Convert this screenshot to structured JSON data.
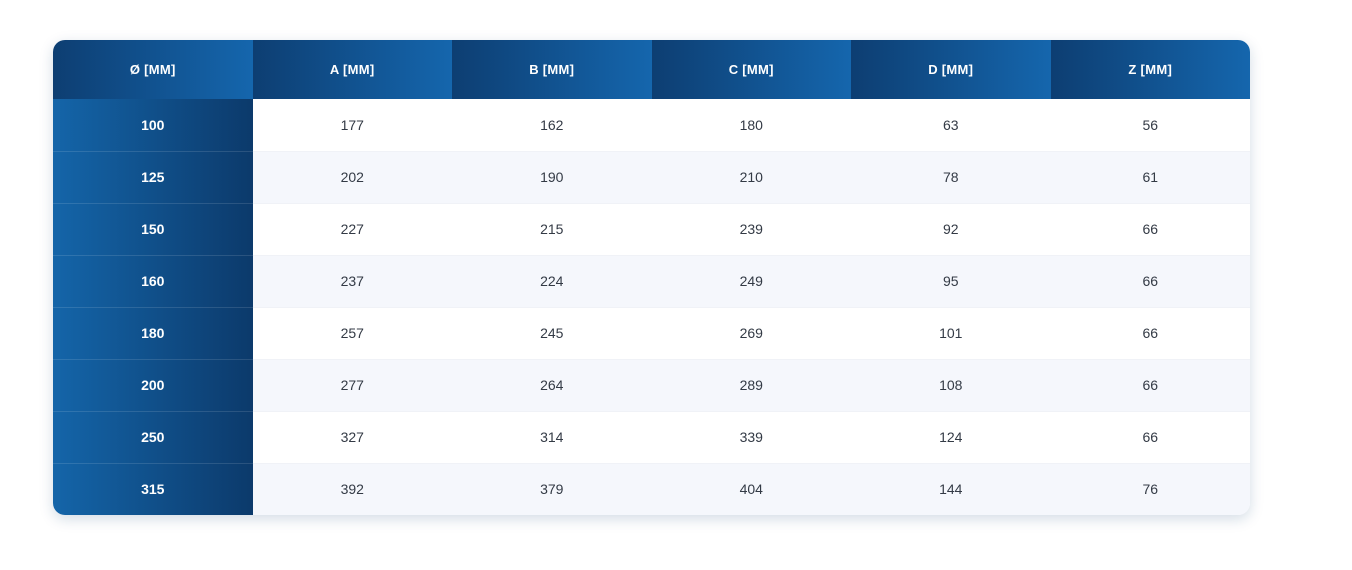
{
  "chart_data": {
    "type": "table",
    "title": "",
    "columns": [
      "Ø [MM]",
      "A [MM]",
      "B [MM]",
      "C [MM]",
      "D [MM]",
      "Z [MM]"
    ],
    "rows": [
      [
        "100",
        "177",
        "162",
        "180",
        "63",
        "56"
      ],
      [
        "125",
        "202",
        "190",
        "210",
        "78",
        "61"
      ],
      [
        "150",
        "227",
        "215",
        "239",
        "92",
        "66"
      ],
      [
        "160",
        "237",
        "224",
        "249",
        "95",
        "66"
      ],
      [
        "180",
        "257",
        "245",
        "269",
        "101",
        "66"
      ],
      [
        "200",
        "277",
        "264",
        "289",
        "108",
        "66"
      ],
      [
        "250",
        "327",
        "314",
        "339",
        "124",
        "66"
      ],
      [
        "315",
        "392",
        "379",
        "404",
        "144",
        "76"
      ]
    ]
  },
  "colors": {
    "header_gradient_start": "#0d3e72",
    "header_gradient_end": "#1566ad",
    "diameter_gradient_start": "#1465a9",
    "diameter_gradient_end": "#0c3a6b",
    "row_alt_background": "#f5f7fc",
    "row_background": "#ffffff",
    "cell_text": "#333a45"
  }
}
